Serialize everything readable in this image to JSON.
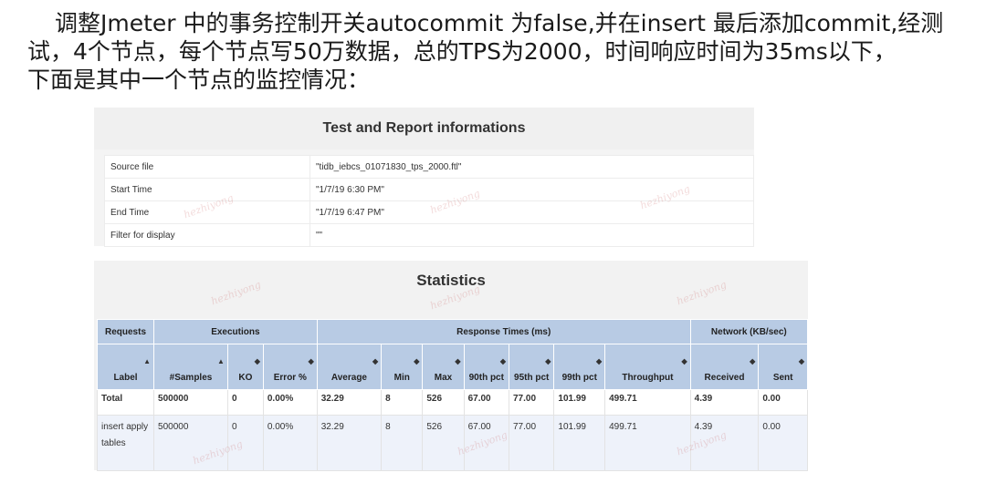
{
  "intro": {
    "line1": "调整Jmeter 中的事务控制开关autocommit 为false,并在insert 最后添加commit,经测",
    "line2": "试，4个节点，每个节点写50万数据，总的TPS为2000，时间响应时间为35ms以下，",
    "line3": "下面是其中一个节点的监控情况："
  },
  "report": {
    "title": "Test and Report informations",
    "rows": [
      {
        "key": "Source file",
        "value": "\"tidb_iebcs_01071830_tps_2000.ftl\""
      },
      {
        "key": "Start Time",
        "value": "\"1/7/19 6:30 PM\""
      },
      {
        "key": "End Time",
        "value": "\"1/7/19 6:47 PM\""
      },
      {
        "key": "Filter for display",
        "value": "\"\""
      }
    ]
  },
  "stats": {
    "title": "Statistics",
    "groups": {
      "requests": "Requests",
      "executions": "Executions",
      "response_times": "Response Times (ms)",
      "network": "Network (KB/sec)"
    },
    "columns": [
      "Label",
      "#Samples",
      "KO",
      "Error %",
      "Average",
      "Min",
      "Max",
      "90th pct",
      "95th pct",
      "99th pct",
      "Throughput",
      "Received",
      "Sent"
    ],
    "total": [
      "Total",
      "500000",
      "0",
      "0.00%",
      "32.29",
      "8",
      "526",
      "67.00",
      "77.00",
      "101.99",
      "499.71",
      "4.39",
      "0.00"
    ],
    "rows": [
      [
        "insert apply tables",
        "500000",
        "0",
        "0.00%",
        "32.29",
        "8",
        "526",
        "67.00",
        "77.00",
        "101.99",
        "499.71",
        "4.39",
        "0.00"
      ]
    ]
  },
  "watermark": "hezhiyong"
}
